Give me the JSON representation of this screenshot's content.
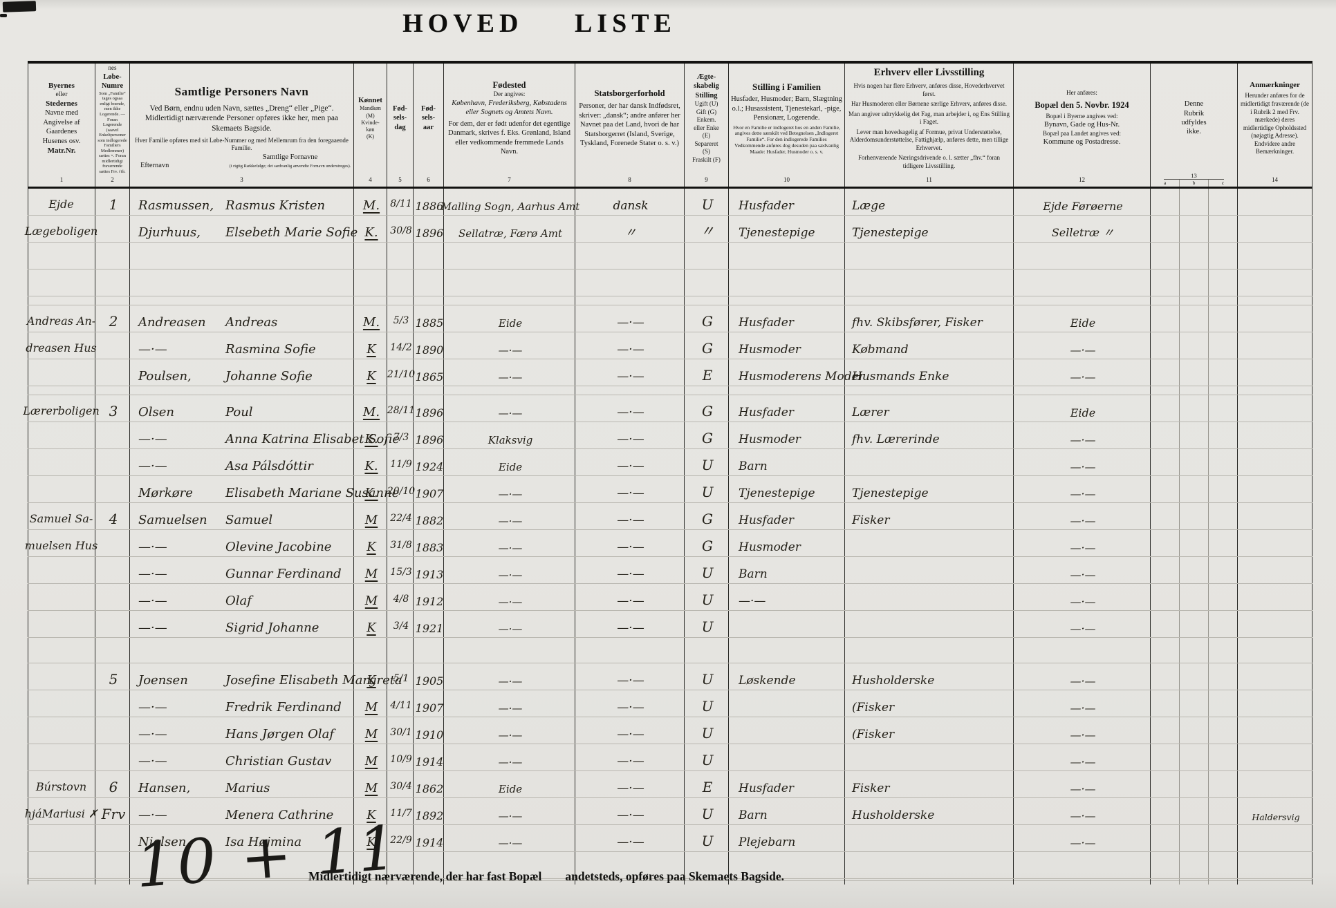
{
  "title": "HOVED  LISTE",
  "header": {
    "col1": {
      "l1": "Byernes",
      "l2": "eller",
      "l3": "Stedernes",
      "l4": "Navne med",
      "l5": "Angivelse af",
      "l6": "Gaardenes",
      "l7": "Husenes osv.",
      "l8": "Matr.Nr."
    },
    "col2": {
      "l1": "Familier-",
      "l2": "nes",
      "l3": "Løbe-",
      "l4": "Numre",
      "note": "Som „Familie“ tages ogsaa enligt boende, men ikke Logerende. — Foran Logerende (saavel Enkeltpersoner som indlogerede Familiers Medlemmer) sættes ×. Foran midlertidigt fraværende sættes Frv. (jfr. Rubr. 14)"
    },
    "col3": {
      "title": "Samtlige Personers Navn",
      "p1": "Ved Børn, endnu uden Navn, sættes „Dreng“ eller „Pige“.",
      "p2": "Midlertidigt nærværende Personer opføres ikke her, men paa Skemaets Bagside.",
      "p3": "Hver Familie opføres med sit Løbe-Nummer og med Mellemrum fra den foregaaende Familie.",
      "sub_ef": "Efternavn",
      "sub_fn": "Samtlige Fornavne",
      "sub_fn_note": "(i rigtig Rækkefølge; det sædvanlig anvendte Fornavn understreges)."
    },
    "col4": {
      "title": "Kønnet",
      "l1": "Mandkøn",
      "l2": "(M)",
      "l3": "Kvinde-",
      "l4": "køn",
      "l5": "(K)"
    },
    "col5": {
      "l1": "Fød-",
      "l2": "sels-",
      "l3": "dag"
    },
    "col6": {
      "l1": "Fød-",
      "l2": "sels-",
      "l3": "aar"
    },
    "col7": {
      "title": "Fødested",
      "p1": "Der angives:",
      "p2": "København, Frederiksberg, Købstadens eller Sognets og Amtets Navn.",
      "p3": "For dem, der er født udenfor det egentlige Danmark, skrives f. Eks. Grønland, Island eller vedkommende fremmede Lands Navn."
    },
    "col8": {
      "title": "Statsborgerforhold",
      "p1": "Personer, der har dansk Indfødsret, skriver: „dansk“; andre anfører her Navnet paa det Land, hvori de har Statsborgerret (Island, Sverige, Tyskland, Forenede Stater o. s. v.)"
    },
    "col9": {
      "l1": "Ægte-",
      "l2": "skabelig",
      "l3": "Stilling",
      "p1": "Ugift (U)",
      "p2": "Gift (G)",
      "p3": "Enkem.",
      "p4": "eller Enke",
      "p5": "(E)",
      "p6": "Separeret",
      "p7": "(S)",
      "p8": "Fraskilt (F)"
    },
    "col10": {
      "title": "Stilling i Familien",
      "p1": "Husfader, Husmoder; Barn, Slægtning o.l.; Husassistent, Tjenestekarl, -pige, Pensionær, Logerende.",
      "p2": "Hvor en Familie er indlogeret hos en anden Familie, angives dette særskilt ved Betegnelsen „Indlogeret Familie“. For den indlogerede Families Vedkommende anføres dog desuden paa sædvanlig Maade: Husfader, Husmoder o. s. v."
    },
    "col11": {
      "title": "Erhverv eller Livsstilling",
      "p1": "Hvis nogen har flere Erhverv, anføres disse, Hovederhvervet først.",
      "p2": "Har Husmoderen eller Børnene særlige Erhverv, anføres disse.",
      "p3": "Man angiver udtrykkelig det Fag, man arbejder i, og Ens Stilling i Faget.",
      "p4": "Lever man hovedsagelig af Formue, privat Understøttelse, Alderdomsunderstøttelse, Fattighjælp, anføres dette, men tillige Erhvervet.",
      "p5": "Forhenværende Næringsdrivende o. l. sætter „fhv.“ foran tidligere Livsstilling."
    },
    "col12": {
      "p0": "Her anføres:",
      "title": "Bopæl den 5. Novbr. 1924",
      "p1": "Bopæl i Byerne angives ved:",
      "p2": "Bynavn, Gade og Hus-Nr.",
      "p3": "Bopæl paa Landet angives ved:",
      "p4": "Kommune og Postadresse."
    },
    "col13": {
      "l1": "Denne",
      "l2": "Rubrik",
      "l3": "udfyldes",
      "l4": "ikke."
    },
    "col14": {
      "title": "Anmærkninger",
      "p1": "Herunder anføres for de midlertidigt fraværende (de i Rubrik 2 med Frv. mærkede) deres midlertidige Opholdssted (nøjagtig Adresse). Endvidere andre Bemærkninger."
    }
  },
  "numbers": [
    "1",
    "2",
    "3",
    "4",
    "5",
    "6",
    "7",
    "8",
    "9",
    "10",
    "11",
    "12",
    "13",
    "a",
    "b",
    "c",
    "14"
  ],
  "families": [
    {
      "gap": 0,
      "no": "1",
      "place": [
        "Ejde",
        "Lægeboligen"
      ],
      "members": [
        {
          "ef": "Rasmussen,",
          "fn": "Rasmus Kristen",
          "k": "M.",
          "d": "8/11",
          "a": "1886",
          "fs": "Malling Sogn, Aarhus Amt",
          "sb": "dansk",
          "ae": "U",
          "st": "Husfader",
          "er": "Læge",
          "bo": "Ejde  Førøerne"
        },
        {
          "ef": "Djurhuus,",
          "fn": "Elsebeth Marie Sofie",
          "k": "K.",
          "d": "30/8",
          "a": "1896",
          "fs": "Sellatræ, Færø Amt",
          "sb": "〃",
          "ae": "〃",
          "st": "Tjenestepige",
          "er": "Tjenestepige",
          "bo": "Selletræ   〃"
        }
      ]
    },
    {
      "gap": 88,
      "no": "2",
      "place": [
        "Andreas An-",
        "dreasen Hus"
      ],
      "members": [
        {
          "ef": "Andreasen",
          "fn": "Andreas",
          "k": "M.",
          "d": "5/3",
          "a": "1885",
          "fs": "Eide",
          "sb": "—·—",
          "ae": "G",
          "st": "Husfader",
          "er": "fhv. Skibsfører, Fisker",
          "bo": "Eide"
        },
        {
          "ef": "—·—",
          "fn": "Rasmina Sofie",
          "k": "K",
          "d": "14/2",
          "a": "1890",
          "fs": "—·—",
          "sb": "—·—",
          "ae": "G",
          "st": "Husmoder",
          "er": "Købmand",
          "bo": "—·—"
        },
        {
          "ef": "Poulsen,",
          "fn": "Johanne Sofie",
          "k": "K",
          "d": "21/10",
          "a": "1865",
          "fs": "—·—",
          "sb": "—·—",
          "ae": "E",
          "st": "Husmoderens Moder",
          "er": "Husmands Enke",
          "bo": "—·—"
        }
      ]
    },
    {
      "gap": 12,
      "no": "3",
      "place": [
        "Lærerboligen"
      ],
      "members": [
        {
          "ef": "Olsen",
          "fn": "Poul",
          "k": "M.",
          "d": "28/11",
          "a": "1896",
          "fs": "—·—",
          "sb": "—·—",
          "ae": "G",
          "st": "Husfader",
          "er": "Lærer",
          "bo": "Eide"
        },
        {
          "ef": "—·—",
          "fn": "Anna Katrina Elisabet Sofie",
          "k": "K.",
          "d": "7/3",
          "a": "1896",
          "fs": "Klaksvig",
          "sb": "—·—",
          "ae": "G",
          "st": "Husmoder",
          "er": "fhv. Lærerinde",
          "bo": "—·—"
        },
        {
          "ef": "—·—",
          "fn": "Asa Pálsdóttir",
          "k": "K.",
          "d": "11/9",
          "a": "1924",
          "fs": "Eide",
          "sb": "—·—",
          "ae": "U",
          "st": "Barn",
          "er": "",
          "bo": "—·—"
        },
        {
          "ef": "Mørkøre",
          "fn": "Elisabeth Mariane Susanne",
          "k": "K.",
          "d": "20/10",
          "a": "1907",
          "fs": "—·—",
          "sb": "—·—",
          "ae": "U",
          "st": "Tjenestepige",
          "er": "Tjenestepige",
          "bo": "—·—"
        }
      ]
    },
    {
      "gap": 0,
      "no": "4",
      "place": [
        "Samuel Sa-",
        "muelsen Hus"
      ],
      "members": [
        {
          "ef": "Samuelsen",
          "fn": "Samuel",
          "k": "M",
          "d": "22/4",
          "a": "1882",
          "fs": "—·—",
          "sb": "—·—",
          "ae": "G",
          "st": "Husfader",
          "er": "Fisker",
          "bo": "—·—"
        },
        {
          "ef": "—·—",
          "fn": "Olevine Jacobine",
          "k": "K",
          "d": "31/8",
          "a": "1883",
          "fs": "—·—",
          "sb": "—·—",
          "ae": "G",
          "st": "Husmoder",
          "er": "",
          "bo": "—·—"
        },
        {
          "ef": "—·—",
          "fn": "Gunnar Ferdinand",
          "k": "M",
          "d": "15/3",
          "a": "1913",
          "fs": "—·—",
          "sb": "—·—",
          "ae": "U",
          "st": "Barn",
          "er": "",
          "bo": "—·—"
        },
        {
          "ef": "—·—",
          "fn": "Olaf",
          "k": "M",
          "d": "4/8",
          "a": "1912",
          "fs": "—·—",
          "sb": "—·—",
          "ae": "U",
          "st": "—·—",
          "er": "",
          "bo": "—·—"
        },
        {
          "ef": "—·—",
          "fn": "Sigrid Johanne",
          "k": "K",
          "d": "3/4",
          "a": "1921",
          "fs": "—·—",
          "sb": "—·—",
          "ae": "U",
          "st": "",
          "er": "",
          "bo": "—·—"
        }
      ]
    },
    {
      "gap": 36,
      "no": "5",
      "place": [],
      "members": [
        {
          "ef": "Joensen",
          "fn": "Josefine Elisabeth Margreta",
          "k": "K",
          "d": "5/1",
          "a": "1905",
          "fs": "—·—",
          "sb": "—·—",
          "ae": "U",
          "st": "Løskende",
          "er": "Husholderske",
          "bo": "—·—"
        },
        {
          "ef": "—·—",
          "fn": "Fredrik Ferdinand",
          "k": "M",
          "d": "4/11",
          "a": "1907",
          "fs": "—·—",
          "sb": "—·—",
          "ae": "U",
          "st": "",
          "er": "(Fisker",
          "bo": "—·—"
        },
        {
          "ef": "—·—",
          "fn": "Hans Jørgen Olaf",
          "k": "M",
          "d": "30/1",
          "a": "1910",
          "fs": "—·—",
          "sb": "—·—",
          "ae": "U",
          "st": "",
          "er": "(Fisker",
          "bo": "—·—"
        },
        {
          "ef": "—·—",
          "fn": "Christian Gustav",
          "k": "M",
          "d": "10/9",
          "a": "1914",
          "fs": "—·—",
          "sb": "—·—",
          "ae": "U",
          "st": "",
          "er": "",
          "bo": "—·—"
        }
      ]
    },
    {
      "gap": 0,
      "no": "6",
      "place": [
        "Búrstovn",
        "hjáMariusi ✗"
      ],
      "members": [
        {
          "ef": "Hansen,",
          "fn": "Marius",
          "k": "M",
          "d": "30/4",
          "a": "1862",
          "fs": "Eide",
          "sb": "—·—",
          "ae": "E",
          "st": "Husfader",
          "er": "Fisker",
          "bo": "—·—"
        },
        {
          "mark": "Frv",
          "ef": "—·—",
          "fn": "Menera Cathrine",
          "k": "K",
          "d": "11/7",
          "a": "1892",
          "fs": "—·—",
          "sb": "—·—",
          "ae": "U",
          "st": "Barn",
          "er": "Husholderske",
          "bo": "—·—",
          "an": "Haldersvig"
        },
        {
          "ef": "Nielsen",
          "fn": "Isa Højmina",
          "k": "K",
          "d": "22/9",
          "a": "1914",
          "fs": "—·—",
          "sb": "—·—",
          "ae": "U",
          "st": "Plejebarn",
          "er": "",
          "bo": "—·—"
        }
      ]
    }
  ],
  "footer": {
    "text1": "Midlertidigt nærværende, der har fast Bopæl",
    "text2": "andetsteds, opføres paa Skemaets Bagside.",
    "sum": "10 + 11"
  }
}
